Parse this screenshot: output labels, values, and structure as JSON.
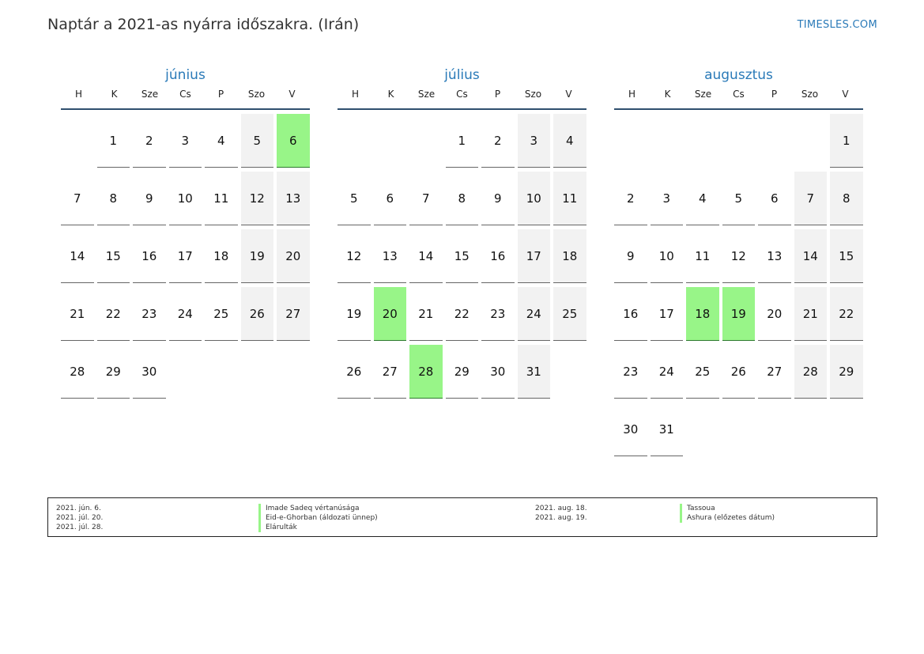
{
  "title": "Naptár a 2021-as nyárra időszakra. (Irán)",
  "brand": "TIMESLES.COM",
  "weekdays": [
    "H",
    "K",
    "Sze",
    "Cs",
    "P",
    "Szo",
    "V"
  ],
  "colors": {
    "accent": "#2a7ab8",
    "holiday": "#98f588",
    "weekend": "#f2f2f2"
  },
  "months": [
    {
      "name": "június",
      "start_offset": 1,
      "days": 30,
      "holidays": [
        6
      ]
    },
    {
      "name": "július",
      "start_offset": 3,
      "days": 31,
      "holidays": [
        20,
        28
      ]
    },
    {
      "name": "augusztus",
      "start_offset": 6,
      "days": 31,
      "holidays": [
        18,
        19
      ]
    }
  ],
  "legend": {
    "left_dates": [
      "2021. jún. 6.",
      "2021. júl. 20.",
      "2021. júl. 28."
    ],
    "left_names": [
      "Imade Sadeq vértanúsága",
      "Eid-e-Ghorban (áldozati ünnep)",
      "Elárulták"
    ],
    "right_dates": [
      "2021. aug. 18.",
      "2021. aug. 19."
    ],
    "right_names": [
      "Tassoua",
      "Ashura (előzetes dátum)"
    ]
  }
}
